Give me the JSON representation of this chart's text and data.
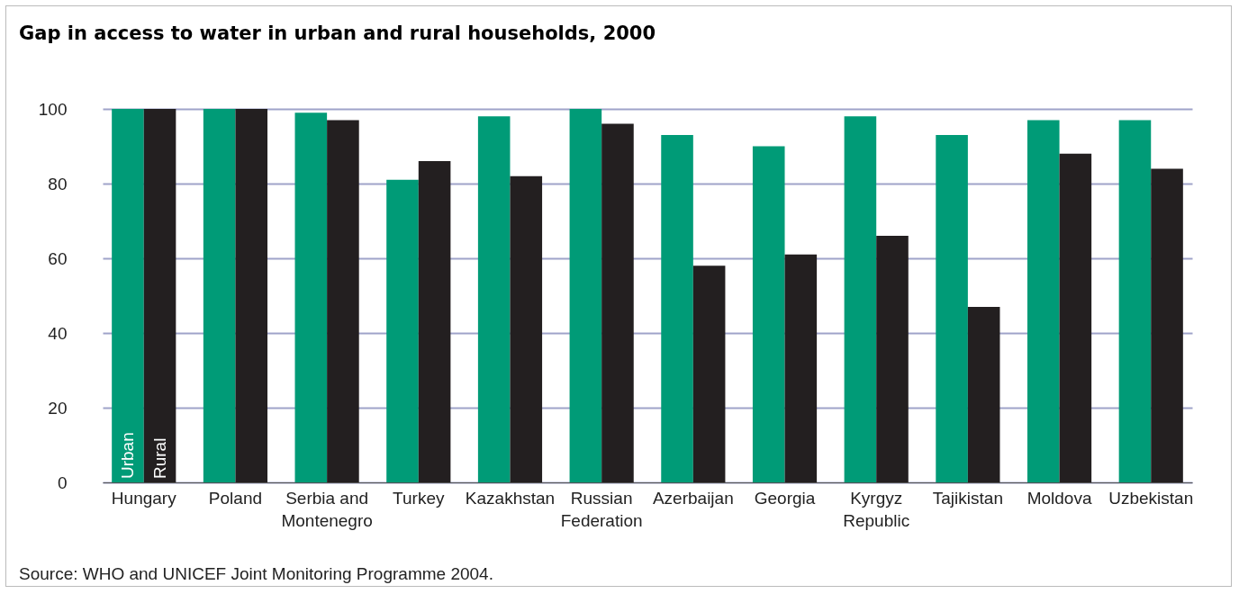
{
  "chart_data": {
    "type": "bar",
    "title": "Gap in access to water in urban and rural households, 2000",
    "categories": [
      "Hungary",
      "Poland",
      "Serbia and Montenegro",
      "Turkey",
      "Kazakhstan",
      "Russian Federation",
      "Azerbaijan",
      "Georgia",
      "Kyrgyz Republic",
      "Tajikistan",
      "Moldova",
      "Uzbekistan"
    ],
    "series": [
      {
        "name": "Urban",
        "color": "#009b77",
        "values": [
          100,
          100,
          99,
          81,
          98,
          100,
          93,
          90,
          98,
          93,
          97,
          97
        ]
      },
      {
        "name": "Rural",
        "color": "#231f20",
        "values": [
          100,
          100,
          97,
          86,
          82,
          96,
          58,
          61,
          66,
          47,
          88,
          84
        ]
      }
    ],
    "ylim": [
      0,
      100
    ],
    "yticks": [
      0,
      20,
      40,
      60,
      80,
      100
    ],
    "grid": "y",
    "annotations": [
      "Source: WHO and UNICEF Joint Monitoring Programme 2004."
    ]
  }
}
